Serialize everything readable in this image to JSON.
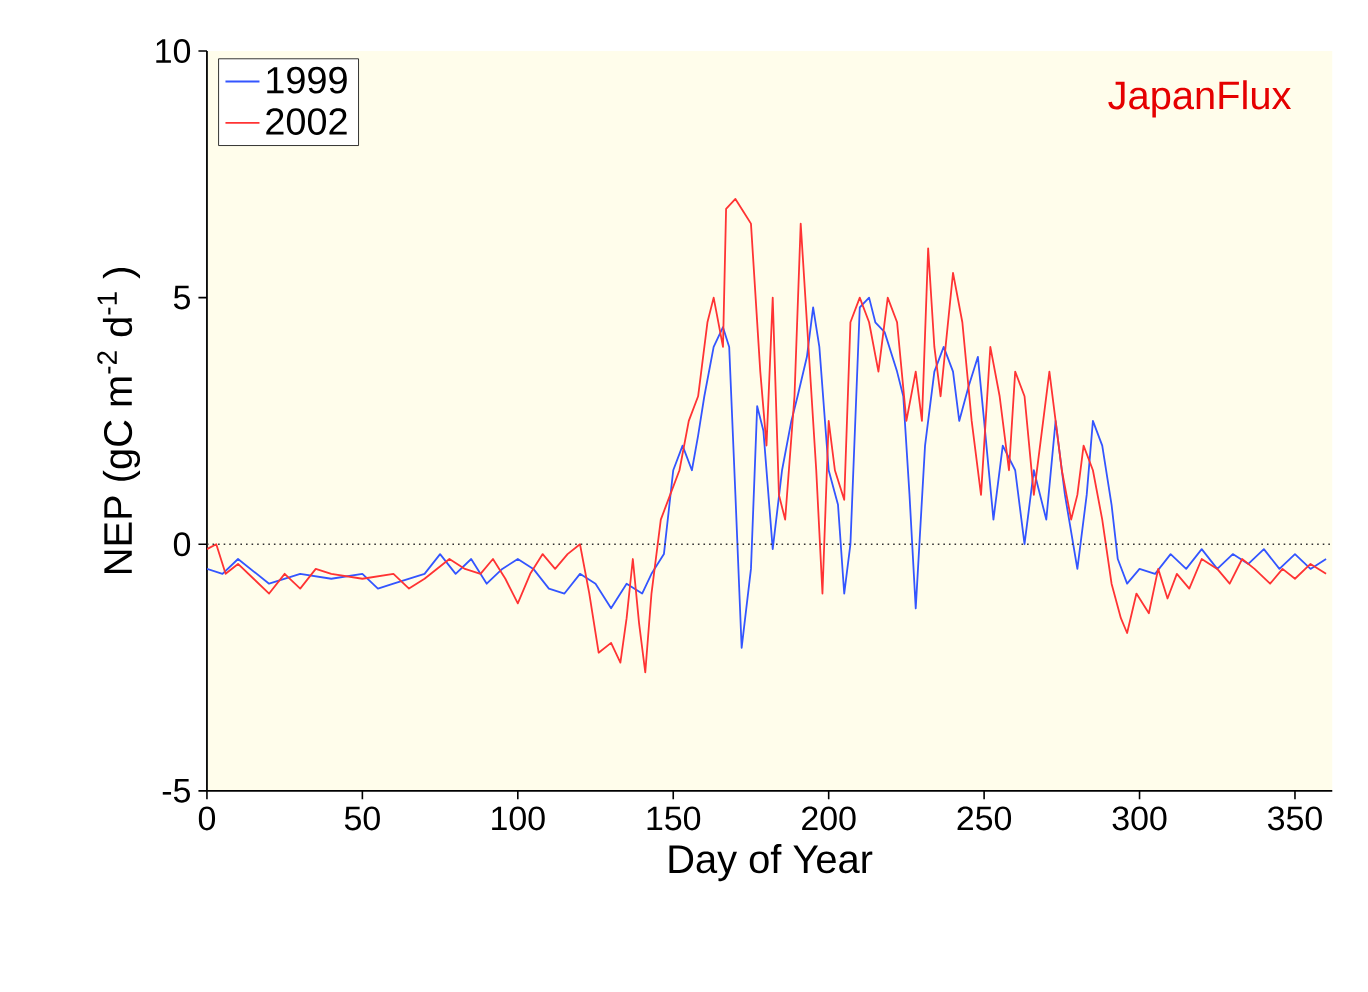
{
  "chart_data": {
    "type": "line",
    "xlabel": "Day of Year",
    "ylabel": "NEP (gC m$^{-2}$ d$^{-1}$ )",
    "annotations": [
      "JapanFlux"
    ],
    "xlim": [
      0,
      362
    ],
    "ylim": [
      -5,
      10
    ],
    "xticks": [
      0,
      50,
      100,
      150,
      200,
      250,
      300,
      350
    ],
    "yticks": [
      -5,
      0,
      5,
      10
    ],
    "legend": "top left",
    "grid": false,
    "marker": "none",
    "line_style": "solid",
    "ref_lines": [
      {
        "axis": "y",
        "value": 0,
        "line_style": "dotted",
        "color": "#333333"
      }
    ],
    "series": [
      {
        "name": "1999",
        "color": "#3355ff",
        "x": [
          0,
          5,
          10,
          20,
          30,
          40,
          50,
          55,
          60,
          70,
          75,
          80,
          85,
          90,
          95,
          100,
          105,
          110,
          115,
          120,
          125,
          130,
          135,
          140,
          143,
          147,
          150,
          153,
          156,
          158,
          160,
          163,
          166,
          168,
          170,
          172,
          175,
          177,
          179,
          182,
          185,
          188,
          190,
          193,
          195,
          197,
          200,
          203,
          205,
          207,
          210,
          213,
          215,
          218,
          222,
          224,
          226,
          228,
          231,
          234,
          237,
          240,
          242,
          245,
          248,
          250,
          253,
          256,
          260,
          263,
          266,
          270,
          273,
          276,
          280,
          283,
          285,
          288,
          291,
          293,
          296,
          300,
          305,
          310,
          315,
          320,
          325,
          330,
          335,
          340,
          345,
          350,
          355,
          360
        ],
        "values": [
          -0.5,
          -0.6,
          -0.3,
          -0.8,
          -0.6,
          -0.7,
          -0.6,
          -0.9,
          -0.8,
          -0.6,
          -0.2,
          -0.6,
          -0.3,
          -0.8,
          -0.5,
          -0.3,
          -0.5,
          -0.9,
          -1.0,
          -0.6,
          -0.8,
          -1.3,
          -0.8,
          -1.0,
          -0.6,
          -0.2,
          1.5,
          2.0,
          1.5,
          2.2,
          3.0,
          4.0,
          4.4,
          4.0,
          1.0,
          -2.1,
          -0.5,
          2.8,
          2.3,
          -0.1,
          1.5,
          2.5,
          3.0,
          3.8,
          4.8,
          4.0,
          1.5,
          0.8,
          -1.0,
          0.0,
          4.8,
          5.0,
          4.5,
          4.3,
          3.5,
          3.0,
          1.0,
          -1.3,
          2.0,
          3.5,
          4.0,
          3.5,
          2.5,
          3.2,
          3.8,
          2.5,
          0.5,
          2.0,
          1.5,
          0.0,
          1.5,
          0.5,
          2.5,
          1.0,
          -0.5,
          1.0,
          2.5,
          2.0,
          0.8,
          -0.3,
          -0.8,
          -0.5,
          -0.6,
          -0.2,
          -0.5,
          -0.1,
          -0.5,
          -0.2,
          -0.4,
          -0.1,
          -0.5,
          -0.2,
          -0.5,
          -0.3
        ]
      },
      {
        "name": "2002",
        "color": "#ff3333",
        "x": [
          0,
          3,
          6,
          10,
          15,
          20,
          25,
          30,
          35,
          40,
          50,
          60,
          65,
          70,
          78,
          83,
          88,
          92,
          96,
          100,
          104,
          108,
          112,
          116,
          120,
          123,
          126,
          130,
          133,
          135,
          137,
          139,
          141,
          143,
          146,
          149,
          152,
          155,
          158,
          161,
          163,
          166,
          167,
          170,
          173,
          175,
          178,
          180,
          182,
          184,
          186,
          189,
          191,
          193,
          196,
          198,
          200,
          202,
          205,
          207,
          210,
          213,
          216,
          219,
          222,
          225,
          228,
          230,
          232,
          234,
          236,
          240,
          243,
          246,
          249,
          252,
          255,
          258,
          260,
          263,
          266,
          268,
          271,
          275,
          278,
          280,
          282,
          285,
          288,
          291,
          294,
          296,
          299,
          303,
          306,
          309,
          312,
          316,
          320,
          325,
          329,
          333,
          337,
          342,
          346,
          350,
          355,
          360
        ],
        "values": [
          -0.1,
          0.0,
          -0.6,
          -0.4,
          -0.7,
          -1.0,
          -0.6,
          -0.9,
          -0.5,
          -0.6,
          -0.7,
          -0.6,
          -0.9,
          -0.7,
          -0.3,
          -0.5,
          -0.6,
          -0.3,
          -0.7,
          -1.2,
          -0.6,
          -0.2,
          -0.5,
          -0.2,
          0.0,
          -1.0,
          -2.2,
          -2.0,
          -2.4,
          -1.5,
          -0.3,
          -1.6,
          -2.6,
          -1.0,
          0.5,
          1.0,
          1.5,
          2.5,
          3.0,
          4.5,
          5.0,
          4.0,
          6.8,
          7.0,
          6.7,
          6.5,
          3.5,
          2.0,
          5.0,
          1.0,
          0.5,
          3.0,
          6.5,
          4.5,
          1.5,
          -1.0,
          2.5,
          1.5,
          0.9,
          4.5,
          5.0,
          4.5,
          3.5,
          5.0,
          4.5,
          2.5,
          3.5,
          2.5,
          6.0,
          4.0,
          3.0,
          5.5,
          4.5,
          2.5,
          1.0,
          4.0,
          3.0,
          1.5,
          3.5,
          3.0,
          1.0,
          2.0,
          3.5,
          1.5,
          0.5,
          1.0,
          2.0,
          1.5,
          0.5,
          -0.8,
          -1.5,
          -1.8,
          -1.0,
          -1.4,
          -0.5,
          -1.1,
          -0.6,
          -0.9,
          -0.3,
          -0.5,
          -0.8,
          -0.3,
          -0.5,
          -0.8,
          -0.5,
          -0.7,
          -0.4,
          -0.6
        ]
      }
    ]
  }
}
